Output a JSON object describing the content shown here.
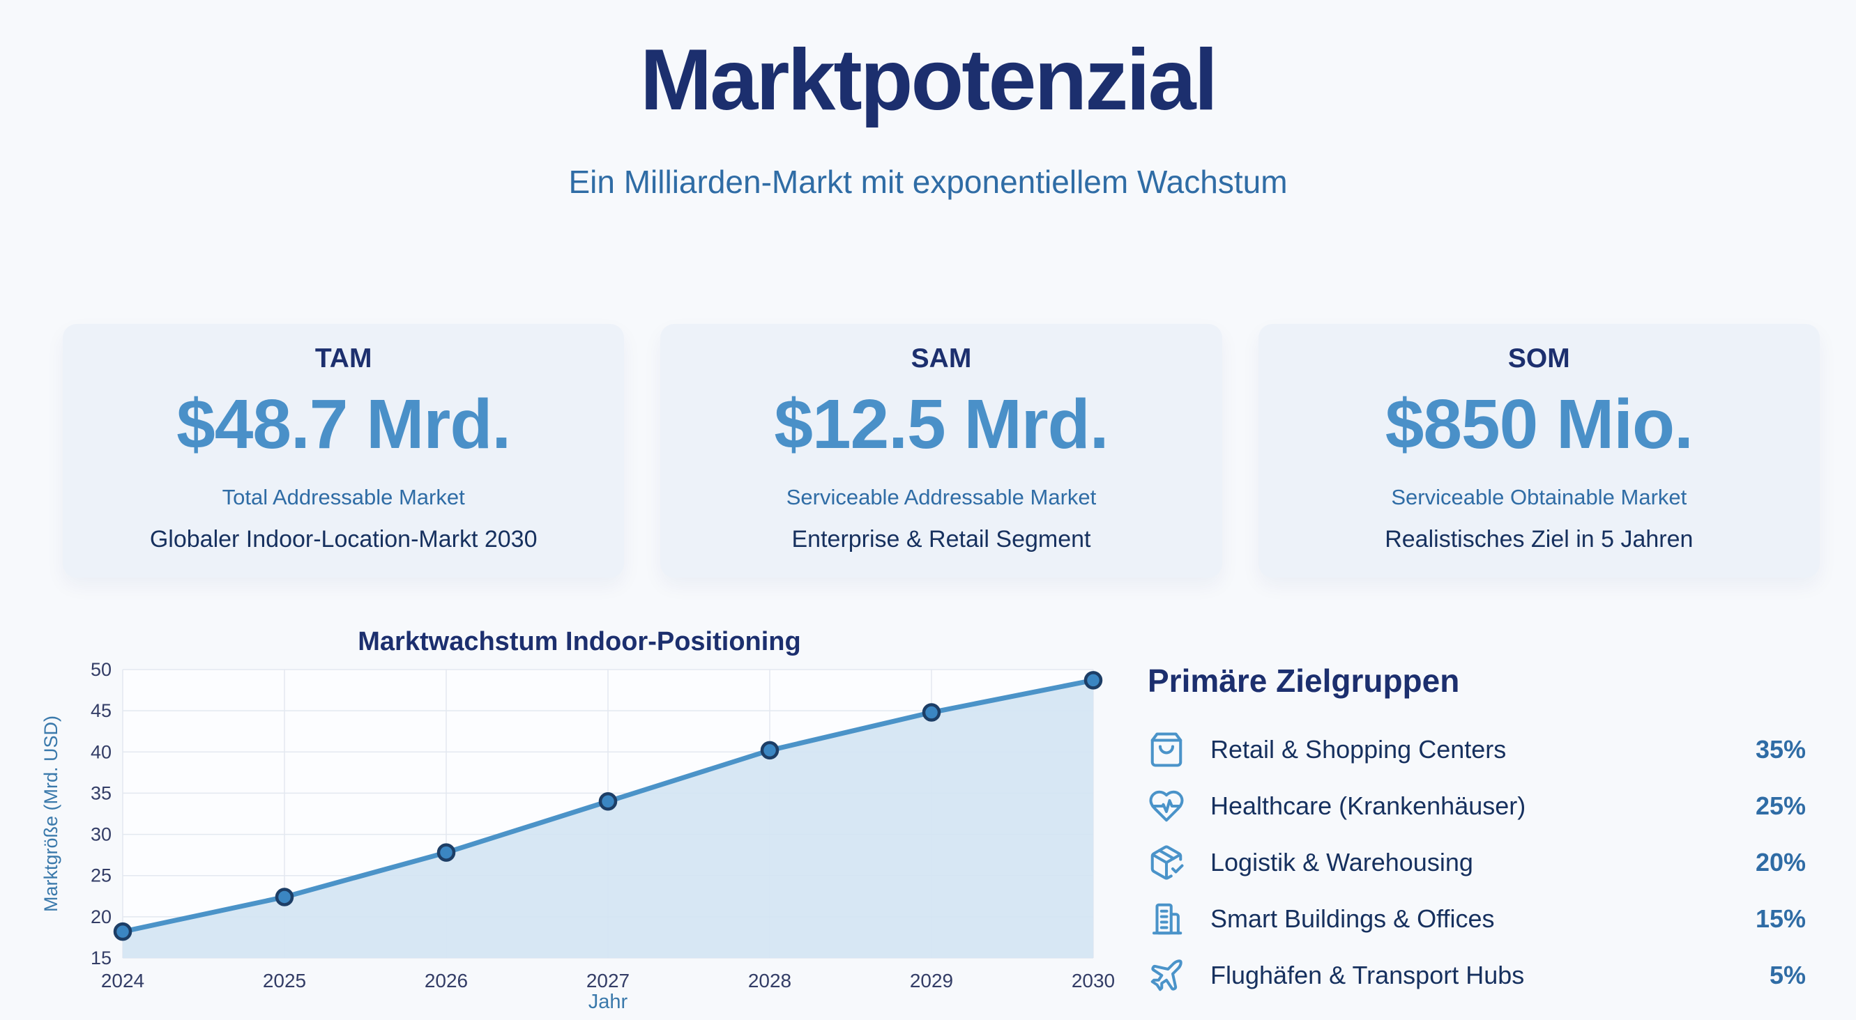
{
  "page": {
    "title": "Marktpotenzial",
    "subtitle": "Ein Milliarden-Markt mit exponentiellem Wachstum"
  },
  "cards": [
    {
      "acronym": "TAM",
      "value": "$48.7 Mrd.",
      "label": "Total Addressable Market",
      "description": "Globaler Indoor-Location-Markt 2030"
    },
    {
      "acronym": "SAM",
      "value": "$12.5 Mrd.",
      "label": "Serviceable Addressable Market",
      "description": "Enterprise & Retail Segment"
    },
    {
      "acronym": "SOM",
      "value": "$850 Mio.",
      "label": "Serviceable Obtainable Market",
      "description": "Realistisches Ziel in 5 Jahren"
    }
  ],
  "chart_data": {
    "type": "area",
    "title": "Marktwachstum Indoor-Positioning",
    "xlabel": "Jahr",
    "ylabel": "Marktgröße (Mrd. USD)",
    "x": [
      2024,
      2025,
      2026,
      2027,
      2028,
      2029,
      2030
    ],
    "values": [
      18.2,
      22.4,
      27.8,
      34.0,
      40.2,
      44.8,
      48.7
    ],
    "ylim": [
      15,
      50
    ],
    "yticks": [
      15,
      20,
      25,
      30,
      35,
      40,
      45,
      50
    ],
    "grid": true,
    "legend": false,
    "colors": {
      "line": "#4b93c8",
      "fill": "#d3e4f3",
      "marker": "#3b86c2",
      "marker_border": "#1d3e66",
      "grid": "#e3e8f0",
      "plot_background": "#fcfdff",
      "tick_text": "#333d66",
      "axis_label": "#3a79ab"
    }
  },
  "target_groups": {
    "heading": "Primäre Zielgruppen",
    "items": [
      {
        "icon": "shopping-bag",
        "label": "Retail & Shopping Centers",
        "share": "35%"
      },
      {
        "icon": "heart-pulse",
        "label": "Healthcare (Krankenhäuser)",
        "share": "25%"
      },
      {
        "icon": "package-check",
        "label": "Logistik & Warehousing",
        "share": "20%"
      },
      {
        "icon": "office-building",
        "label": "Smart Buildings & Offices",
        "share": "15%"
      },
      {
        "icon": "airplane",
        "label": "Flughäfen & Transport Hubs",
        "share": "5%"
      }
    ]
  },
  "colors": {
    "background": "#f7f9fc",
    "card_background": "#edf2f9",
    "navy": "#1c2f6e",
    "steel_blue": "#2f6ca5",
    "accent_blue": "#4a90c8",
    "icon_blue": "#4a93c9"
  }
}
